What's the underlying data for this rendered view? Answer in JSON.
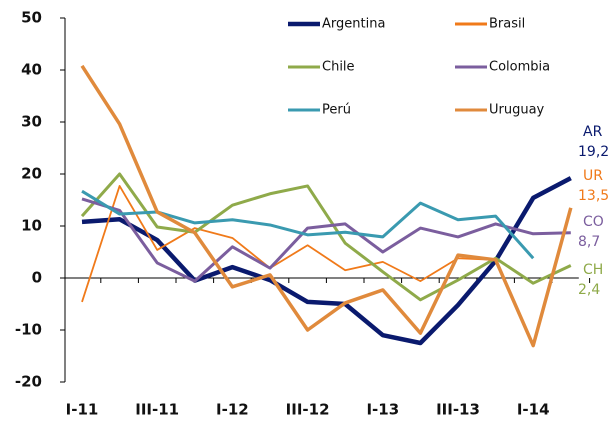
{
  "chart_data": {
    "type": "line",
    "categories": [
      "I-11",
      null,
      "III-11",
      null,
      "I-12",
      null,
      "III-12",
      null,
      "I-13",
      null,
      "III-13",
      null,
      "I-14",
      null
    ],
    "series": [
      {
        "name": "Argentina",
        "color": "#0a1a6e",
        "values": [
          10.8,
          11.3,
          7.3,
          -0.5,
          2.1,
          -0.4,
          -4.6,
          -5.0,
          -11.0,
          -12.5,
          -5.2,
          3.3,
          15.4,
          19.2
        ]
      },
      {
        "name": "Brasil",
        "color": "#f07a1a",
        "values": [
          -4.6,
          17.7,
          5.4,
          9.6,
          7.7,
          1.9,
          6.3,
          1.5,
          3.1,
          -0.6,
          3.8,
          3.5,
          null,
          null
        ]
      },
      {
        "name": "Chile",
        "color": "#8faa4a",
        "values": [
          11.9,
          20.0,
          9.8,
          8.8,
          14.0,
          16.2,
          17.7,
          6.7,
          1.2,
          -4.2,
          -0.4,
          3.8,
          -1.0,
          2.4
        ]
      },
      {
        "name": "Colombia",
        "color": "#7b5e9e",
        "values": [
          15.2,
          13.0,
          2.9,
          -0.6,
          6.0,
          1.9,
          9.6,
          10.4,
          5.0,
          9.6,
          7.9,
          10.4,
          8.5,
          8.7
        ]
      },
      {
        "name": "Perú",
        "color": "#3a9ab0",
        "values": [
          16.7,
          12.3,
          12.7,
          10.6,
          11.2,
          10.2,
          8.3,
          8.8,
          7.9,
          14.4,
          11.2,
          11.9,
          3.8,
          null
        ]
      },
      {
        "name": "Uruguay",
        "color": "#e08a3c",
        "values": [
          40.8,
          29.6,
          12.7,
          8.7,
          -1.7,
          0.6,
          -10.0,
          -4.8,
          -2.3,
          -10.6,
          4.4,
          3.5,
          -13.0,
          13.5
        ]
      }
    ],
    "annotations": [
      {
        "label": "AR",
        "text": "19,2",
        "color": "#0a1a6e"
      },
      {
        "label": "UR",
        "text": "13,5",
        "color": "#f07a1a"
      },
      {
        "label": "CO",
        "text": "8,7",
        "color": "#7b5e9e"
      },
      {
        "label": "CH",
        "text": "2,4",
        "color": "#8faa4a"
      }
    ],
    "ylim": [
      -20,
      50
    ],
    "yticks": [
      -20,
      -10,
      0,
      10,
      20,
      30,
      40,
      50
    ],
    "grid": false
  }
}
